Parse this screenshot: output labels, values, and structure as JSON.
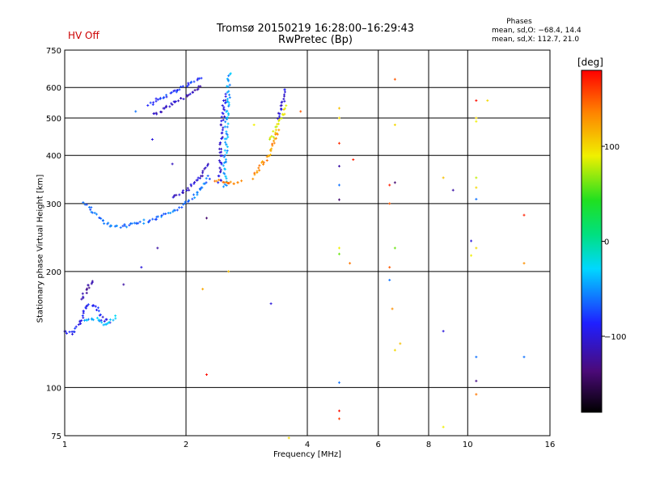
{
  "status": {
    "hv": "HV Off",
    "hv_color": "#cc0000"
  },
  "chart_data": {
    "type": "scatter",
    "title": "Tromsø 20150219 16:28:00–16:29:43",
    "subtitle": "RwPretec (Bp)",
    "xlabel": "Frequency [MHz]",
    "ylabel": "Stationary phase Virtual Height [km]",
    "x_scale": "log",
    "y_scale": "log",
    "xlim": [
      1,
      16
    ],
    "ylim": [
      75,
      750
    ],
    "xticks": [
      1,
      2,
      4,
      6,
      8,
      10,
      16
    ],
    "xtick_labels": [
      "1",
      "2",
      "4",
      "6",
      "8",
      "10",
      "16"
    ],
    "yticks": [
      75,
      100,
      200,
      300,
      400,
      500,
      600,
      750
    ],
    "ytick_labels": [
      "75",
      "100",
      "200",
      "300",
      "400",
      "500",
      "600",
      "750"
    ],
    "grid": true,
    "phase_info": {
      "title": "Phases",
      "line1": "mean, sd,O: −68.4, 14.4",
      "line2": "mean, sd,X: 112.7, 21.0"
    },
    "colorbar": {
      "label": "[deg]",
      "range": [
        -180,
        180
      ],
      "ticks": [
        100,
        0,
        -100
      ],
      "tick_labels": [
        "100",
        "0",
        "−100"
      ]
    },
    "traces": [
      {
        "x": [
          1.0,
          1.05,
          1.08,
          1.1,
          1.12,
          1.15,
          1.2,
          1.24,
          1.3
        ],
        "y": [
          140,
          138,
          145,
          150,
          160,
          165,
          162,
          150,
          148
        ],
        "phase": -90
      },
      {
        "x": [
          1.12,
          1.2,
          1.25,
          1.3,
          1.35
        ],
        "y": [
          148,
          151,
          145,
          150,
          153
        ],
        "phase": -40
      },
      {
        "x": [
          1.1,
          1.13,
          1.15,
          1.18
        ],
        "y": [
          170,
          178,
          185,
          190
        ],
        "phase": -115
      },
      {
        "x": [
          1.12,
          1.2,
          1.25,
          1.3,
          1.4,
          1.55,
          1.7,
          1.85,
          2.0,
          2.1,
          2.2,
          2.3
        ],
        "y": [
          300,
          280,
          270,
          262,
          262,
          268,
          275,
          285,
          300,
          315,
          330,
          355
        ],
        "phase": -60
      },
      {
        "x": [
          1.85,
          2.0,
          2.1,
          2.2,
          2.3
        ],
        "y": [
          310,
          325,
          340,
          360,
          380
        ],
        "phase": -105
      },
      {
        "x": [
          1.62,
          1.7,
          1.8,
          1.9,
          2.0,
          2.1,
          2.2
        ],
        "y": [
          540,
          560,
          575,
          590,
          605,
          620,
          640
        ],
        "phase": -80
      },
      {
        "x": [
          1.65,
          1.75,
          1.9,
          2.05,
          2.2
        ],
        "y": [
          510,
          525,
          555,
          575,
          610
        ],
        "phase": -110
      },
      {
        "x": [
          2.5,
          2.5,
          2.52,
          2.52,
          2.53,
          2.55,
          2.55,
          2.57
        ],
        "y": [
          330,
          380,
          420,
          470,
          520,
          570,
          620,
          660
        ],
        "phase": -45
      },
      {
        "x": [
          2.42,
          2.44,
          2.45,
          2.47,
          2.5
        ],
        "y": [
          340,
          400,
          450,
          500,
          580
        ],
        "phase": -100
      },
      {
        "x": [
          2.38,
          2.45,
          2.55,
          2.65,
          2.75
        ],
        "y": [
          345,
          342,
          340,
          340,
          342
        ],
        "phase": 140
      },
      {
        "x": [
          2.95,
          3.0,
          3.1,
          3.2,
          3.3,
          3.4
        ],
        "y": [
          350,
          360,
          380,
          400,
          430,
          470
        ],
        "phase": 130
      },
      {
        "x": [
          3.25,
          3.35,
          3.45,
          3.55
        ],
        "y": [
          440,
          470,
          500,
          540
        ],
        "phase": 90
      },
      {
        "x": [
          3.4,
          3.45,
          3.55
        ],
        "y": [
          500,
          540,
          600
        ],
        "phase": -100
      }
    ],
    "points": [
      {
        "x": 4.8,
        "y": 530,
        "phase": 110
      },
      {
        "x": 4.8,
        "y": 500,
        "phase": 100
      },
      {
        "x": 4.8,
        "y": 430,
        "phase": 165
      },
      {
        "x": 4.8,
        "y": 375,
        "phase": -120
      },
      {
        "x": 4.8,
        "y": 335,
        "phase": -60
      },
      {
        "x": 4.8,
        "y": 307,
        "phase": -140
      },
      {
        "x": 4.8,
        "y": 230,
        "phase": 90
      },
      {
        "x": 4.8,
        "y": 222,
        "phase": 60
      },
      {
        "x": 4.8,
        "y": 103,
        "phase": -60
      },
      {
        "x": 4.8,
        "y": 87,
        "phase": 175
      },
      {
        "x": 4.8,
        "y": 83,
        "phase": 160
      },
      {
        "x": 5.2,
        "y": 390,
        "phase": 170
      },
      {
        "x": 5.1,
        "y": 210,
        "phase": 140
      },
      {
        "x": 6.6,
        "y": 630,
        "phase": 150
      },
      {
        "x": 6.6,
        "y": 480,
        "phase": 100
      },
      {
        "x": 6.6,
        "y": 340,
        "phase": -140
      },
      {
        "x": 6.4,
        "y": 335,
        "phase": 170
      },
      {
        "x": 6.4,
        "y": 300,
        "phase": 150
      },
      {
        "x": 6.6,
        "y": 230,
        "phase": 60
      },
      {
        "x": 6.4,
        "y": 205,
        "phase": 150
      },
      {
        "x": 6.4,
        "y": 190,
        "phase": -60
      },
      {
        "x": 6.5,
        "y": 160,
        "phase": 130
      },
      {
        "x": 6.8,
        "y": 130,
        "phase": 110
      },
      {
        "x": 6.6,
        "y": 125,
        "phase": 100
      },
      {
        "x": 8.7,
        "y": 350,
        "phase": 110
      },
      {
        "x": 9.2,
        "y": 325,
        "phase": -120
      },
      {
        "x": 8.7,
        "y": 140,
        "phase": -100
      },
      {
        "x": 8.7,
        "y": 79,
        "phase": 90
      },
      {
        "x": 10.5,
        "y": 555,
        "phase": 175
      },
      {
        "x": 11.2,
        "y": 555,
        "phase": 100
      },
      {
        "x": 10.5,
        "y": 500,
        "phase": 100
      },
      {
        "x": 10.5,
        "y": 490,
        "phase": 90
      },
      {
        "x": 10.5,
        "y": 350,
        "phase": 80
      },
      {
        "x": 10.5,
        "y": 330,
        "phase": 100
      },
      {
        "x": 10.5,
        "y": 308,
        "phase": -60
      },
      {
        "x": 10.2,
        "y": 240,
        "phase": -100
      },
      {
        "x": 10.2,
        "y": 220,
        "phase": 90
      },
      {
        "x": 10.5,
        "y": 230,
        "phase": 100
      },
      {
        "x": 10.5,
        "y": 120,
        "phase": -60
      },
      {
        "x": 10.5,
        "y": 104,
        "phase": -130
      },
      {
        "x": 10.5,
        "y": 96,
        "phase": 140
      },
      {
        "x": 13.8,
        "y": 280,
        "phase": 170
      },
      {
        "x": 13.8,
        "y": 210,
        "phase": 130
      },
      {
        "x": 13.8,
        "y": 120,
        "phase": -60
      },
      {
        "x": 2.2,
        "y": 180,
        "phase": 120
      },
      {
        "x": 2.25,
        "y": 275,
        "phase": -140
      },
      {
        "x": 2.25,
        "y": 108,
        "phase": 175
      },
      {
        "x": 3.25,
        "y": 165,
        "phase": -100
      },
      {
        "x": 3.6,
        "y": 74,
        "phase": 100
      },
      {
        "x": 1.7,
        "y": 230,
        "phase": -120
      },
      {
        "x": 1.55,
        "y": 205,
        "phase": -100
      },
      {
        "x": 1.4,
        "y": 185,
        "phase": -120
      },
      {
        "x": 1.65,
        "y": 440,
        "phase": -100
      },
      {
        "x": 1.85,
        "y": 380,
        "phase": -110
      },
      {
        "x": 1.5,
        "y": 520,
        "phase": -60
      },
      {
        "x": 2.55,
        "y": 200,
        "phase": 110
      },
      {
        "x": 3.85,
        "y": 520,
        "phase": 150
      },
      {
        "x": 2.95,
        "y": 480,
        "phase": 90
      }
    ]
  }
}
